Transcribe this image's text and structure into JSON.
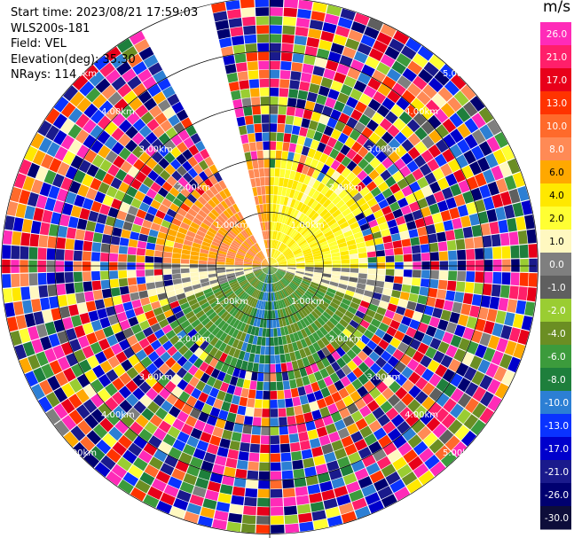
{
  "header": {
    "start_time": "Start time: 2023/08/21 17:59:03",
    "instrument": "WLS200s-181",
    "field": "Field: VEL",
    "elevation": "Elevation(deg): 35.30",
    "nrays": "NRays: 114"
  },
  "colorbar": {
    "title": "m/s",
    "ticks": [
      "26.0",
      "21.0",
      "17.0",
      "13.0",
      "10.0",
      "8.0",
      "6.0",
      "4.0",
      "2.0",
      "1.0",
      "0.0",
      "-1.0",
      "-2.0",
      "-4.0",
      "-6.0",
      "-8.0",
      "-10.0",
      "-13.0",
      "-17.0",
      "-21.0",
      "-26.0",
      "-30.0"
    ],
    "colors": [
      "#ff2bb8",
      "#ff1f6a",
      "#e8001a",
      "#ff3300",
      "#ff6a2b",
      "#ff8a55",
      "#ffa800",
      "#ffe800",
      "#ffff33",
      "#fff8c0",
      "#7f7f7f",
      "#5f5f5f",
      "#9acd32",
      "#6b8e23",
      "#3c9b3c",
      "#1e7f3c",
      "#2c7fd4",
      "#0a33ff",
      "#0000cc",
      "#1a1a8c",
      "#000070",
      "#0d0d3a"
    ]
  },
  "chart_data": {
    "type": "ppi",
    "field": "VEL",
    "units": "m/s",
    "n_rays": 114,
    "elevation_deg": 35.3,
    "range_rings_km": [
      1,
      2,
      3,
      4,
      5
    ],
    "ring_labels": [
      "1.00km",
      "2.00km",
      "3.00km",
      "4.00km",
      "5.00km"
    ],
    "missing_sector_deg": [
      333,
      346
    ],
    "near_field_velocity": [
      {
        "sector": "north",
        "azimuth_deg": [
          0,
          90
        ],
        "value_ms": 2.0
      },
      {
        "sector": "north-west",
        "azimuth_deg": [
          270,
          360
        ],
        "value_ms": 6.0
      },
      {
        "sector": "east",
        "azimuth_deg": [
          70,
          110
        ],
        "value_ms": 0.0
      },
      {
        "sector": "south-east",
        "azimuth_deg": [
          110,
          170
        ],
        "value_ms": -6.0
      },
      {
        "sector": "south",
        "azimuth_deg": [
          170,
          200
        ],
        "value_ms": -10.0
      },
      {
        "sector": "south-west",
        "azimuth_deg": [
          200,
          250
        ],
        "value_ms": -6.0
      },
      {
        "sector": "west",
        "azimuth_deg": [
          250,
          280
        ],
        "value_ms": 0.0
      }
    ],
    "far_field": "noise"
  }
}
